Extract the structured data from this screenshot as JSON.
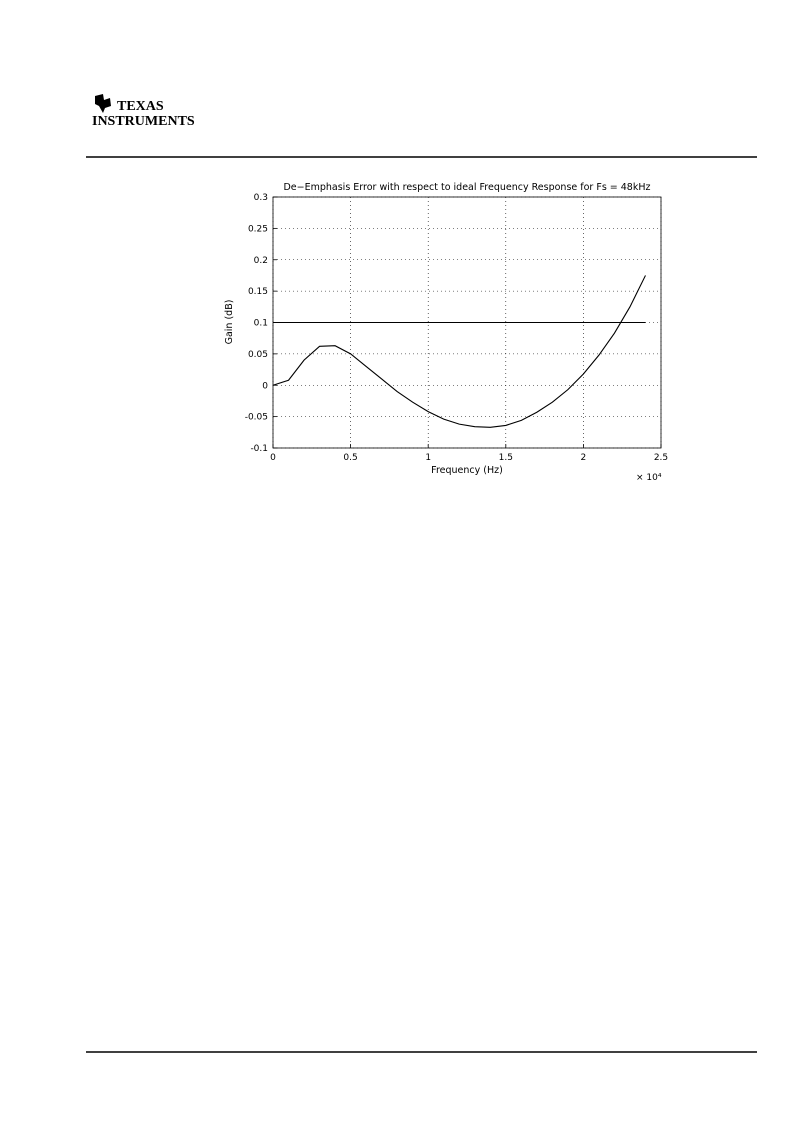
{
  "header": {
    "logo_line1": "TEXAS",
    "logo_line2": "INSTRUMENTS"
  },
  "chart_data": {
    "type": "line",
    "title": "De−Emphasis Error with respect to ideal Frequency Response for Fs = 48kHz",
    "x_label": "Frequency (Hz)",
    "y_label": "Gain (dB)",
    "x_multiplier": "× 10⁴",
    "xlim": [
      0,
      2.5
    ],
    "xticks": [
      0,
      0.5,
      1,
      1.5,
      2,
      2.5
    ],
    "ylim": [
      -0.1,
      0.3
    ],
    "yticks": [
      -0.1,
      -0.05,
      0,
      0.05,
      0.1,
      0.15,
      0.2,
      0.25,
      0.3
    ],
    "grid": true,
    "series": [
      {
        "color": "#000000",
        "x": [
          0,
          0.1,
          0.2,
          0.3,
          0.4,
          0.5,
          0.6,
          0.7,
          0.8,
          0.9,
          1.0,
          1.1,
          1.2,
          1.3,
          1.4,
          1.5,
          1.6,
          1.7,
          1.8,
          1.9,
          2.0,
          2.1,
          2.2,
          2.3,
          2.4
        ],
        "values": [
          0,
          0.008,
          0.04,
          0.062,
          0.063,
          0.05,
          0.03,
          0.01,
          -0.01,
          -0.027,
          -0.042,
          -0.054,
          -0.062,
          -0.066,
          -0.067,
          -0.064,
          -0.056,
          -0.043,
          -0.027,
          -0.007,
          0.018,
          0.048,
          0.083,
          0.125,
          0.175
        ]
      },
      {
        "color": "#000000",
        "x": [
          0,
          2.4
        ],
        "values": [
          0.1,
          0.1
        ]
      }
    ]
  }
}
